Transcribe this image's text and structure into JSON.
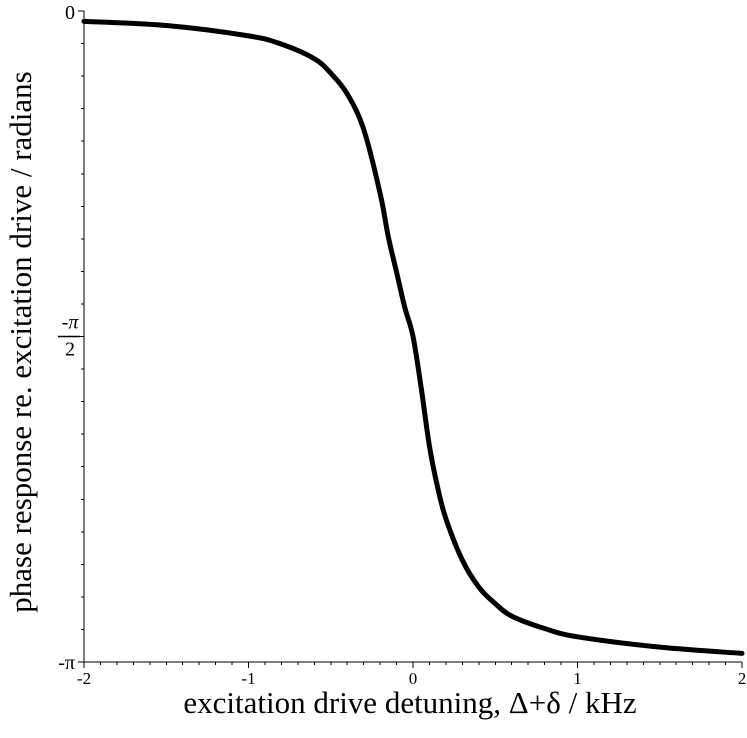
{
  "chart_data": {
    "type": "line",
    "title": "",
    "xlabel": "excitation drive detuning, Δ+δ / kHz",
    "ylabel": "phase response re. excitation drive / radians",
    "xlim": [
      -2,
      2
    ],
    "ylim": [
      -3.14159,
      0
    ],
    "grid": false,
    "legend": "none",
    "colors": {
      "line": "#000000",
      "axes": "#000000"
    },
    "x_ticks": [
      {
        "value": -2,
        "label": "-2"
      },
      {
        "value": -1,
        "label": "-1"
      },
      {
        "value": 0,
        "label": "0"
      },
      {
        "value": 1,
        "label": "1"
      },
      {
        "value": 2,
        "label": "2"
      }
    ],
    "y_ticks": [
      {
        "value": 0,
        "label": "0"
      },
      {
        "value": -1.5708,
        "label": "-π/2",
        "numerator": "-π",
        "denominator": "2"
      },
      {
        "value": -3.14159,
        "label": "-π"
      }
    ],
    "series": [
      {
        "x": [
          -2,
          -1.5,
          -1,
          -0.8,
          -0.6,
          -0.5,
          -0.4,
          -0.3,
          -0.2,
          -0.15,
          -0.1,
          -0.05,
          0,
          0.05,
          0.1,
          0.15,
          0.2,
          0.3,
          0.4,
          0.5,
          0.6,
          0.8,
          1,
          1.5,
          2
        ],
        "y": [
          -0.05,
          -0.07,
          -0.12,
          -0.16,
          -0.23,
          -0.3,
          -0.4,
          -0.57,
          -0.88,
          -1.09,
          -1.26,
          -1.43,
          -1.57,
          -1.82,
          -2.1,
          -2.3,
          -2.45,
          -2.65,
          -2.78,
          -2.86,
          -2.92,
          -2.98,
          -3.02,
          -3.07,
          -3.1
        ]
      }
    ]
  }
}
